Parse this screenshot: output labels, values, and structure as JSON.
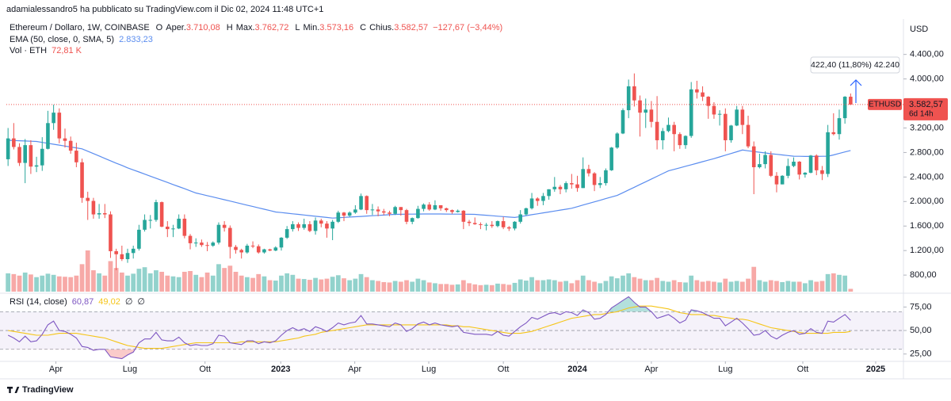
{
  "chart_data": {
    "type": "candlestick",
    "byline": "adamialessandro5 ha pubblicato su TradingView.com il Dic 02, 2024 11:48 UTC+1",
    "title": "Ethereum / Dollaro, 1W, COINBASE",
    "ohlc_legend": [
      {
        "key": "O",
        "name": "Aper.",
        "value": "3.710,08"
      },
      {
        "key": "H",
        "name": "Max.",
        "value": "3.762,72"
      },
      {
        "key": "L",
        "name": "Min.",
        "value": "3.573,16"
      },
      {
        "key": "C",
        "name": "Chius.",
        "value": "3.582,57"
      }
    ],
    "change_label": "−127,67 (−3,44%)",
    "currency": "USD",
    "symbol_tag": "ETHUSD",
    "last_price_label": "3.582,57",
    "countdown": "6d 14h",
    "measure_label": "422,40 (11,80%) 42.240",
    "brand": "TradingView",
    "up_color": "#26a69a",
    "down_color": "#ef5350",
    "xlim": [
      -0.3,
      157
    ],
    "xticks": [
      {
        "value": 8.4,
        "label": "Apr"
      },
      {
        "value": 21.4,
        "label": "Lug"
      },
      {
        "value": 34.6,
        "label": "Ott"
      },
      {
        "value": 47.9,
        "label": "2023"
      },
      {
        "value": 60.9,
        "label": "Apr"
      },
      {
        "value": 73.9,
        "label": "Lug"
      },
      {
        "value": 87,
        "label": "Ott"
      },
      {
        "value": 100,
        "label": "2024"
      },
      {
        "value": 113,
        "label": "Apr"
      },
      {
        "value": 126,
        "label": "Lug"
      },
      {
        "value": 139.6,
        "label": "Ott"
      },
      {
        "value": 152.4,
        "label": "2025"
      }
    ],
    "ylim": [
      530,
      4900
    ],
    "yticks": [
      {
        "value": 4400,
        "label": "4.400,00"
      },
      {
        "value": 4000,
        "label": "4.000,00"
      },
      {
        "value": 3200,
        "label": "3.200,00"
      },
      {
        "value": 2800,
        "label": "2.800,00"
      },
      {
        "value": 2400,
        "label": "2.400,00"
      },
      {
        "value": 2000,
        "label": "2.000,00"
      },
      {
        "value": 1600,
        "label": "1.600,00"
      },
      {
        "value": 1200,
        "label": "1.200,00"
      },
      {
        "value": 800,
        "label": "800,00"
      }
    ],
    "open": [
      2690,
      3030,
      2890,
      2630,
      2920,
      2570,
      2590,
      2860,
      3280,
      3450,
      3030,
      2990,
      2830,
      2640,
      2060,
      2010,
      1790,
      1810,
      1790,
      1190,
      1140,
      1060,
      1160,
      1230,
      1540,
      1700,
      1700,
      1990,
      1590,
      1550,
      1560,
      1720,
      1440,
      1320,
      1330,
      1290,
      1280,
      1330,
      1620,
      1570,
      1260,
      1210,
      1170,
      1280,
      1270,
      1170,
      1220,
      1200,
      1250,
      1410,
      1550,
      1630,
      1570,
      1630,
      1520,
      1690,
      1640,
      1560,
      1670,
      1820,
      1770,
      1820,
      1870,
      2090,
      1860,
      1870,
      1840,
      1820,
      1800,
      1910,
      1860,
      1670,
      1730,
      1880,
      1950,
      1870,
      1940,
      1890,
      1860,
      1830,
      1850,
      1670,
      1650,
      1630,
      1620,
      1620,
      1600,
      1680,
      1580,
      1560,
      1670,
      1790,
      1890,
      2050,
      2010,
      2090,
      2200,
      2240,
      2200,
      2300,
      2280,
      2220,
      2530,
      2460,
      2270,
      2300,
      2510,
      2880,
      3110,
      3490,
      3880,
      3650,
      3450,
      3500,
      3300,
      3000,
      3150,
      3250,
      3100,
      2920,
      3070,
      3830,
      3780,
      3710,
      3560,
      3420,
      3430,
      3000,
      3240,
      3500,
      3250,
      2900,
      2560,
      2610,
      2760,
      2420,
      2280,
      2420,
      2580,
      2650,
      2440,
      2470,
      2750,
      2510,
      2450,
      3130,
      3100,
      3360,
      3710.08
    ],
    "high": [
      3200,
      3280,
      2950,
      3020,
      3000,
      2730,
      3050,
      3480,
      3580,
      3520,
      3190,
      3060,
      2960,
      2700,
      2160,
      2060,
      1960,
      1960,
      1840,
      1230,
      1280,
      1230,
      1280,
      1620,
      1790,
      1780,
      2030,
      2000,
      1680,
      1620,
      1790,
      1790,
      1470,
      1400,
      1380,
      1340,
      1350,
      1660,
      1680,
      1610,
      1290,
      1230,
      1310,
      1350,
      1300,
      1230,
      1230,
      1270,
      1420,
      1600,
      1680,
      1660,
      1720,
      1680,
      1740,
      1720,
      1680,
      1700,
      1850,
      1830,
      1840,
      1940,
      2130,
      2100,
      1960,
      1920,
      1880,
      1850,
      1930,
      1910,
      1880,
      1740,
      1930,
      1970,
      1990,
      2020,
      1940,
      1900,
      1870,
      1870,
      1860,
      1700,
      1740,
      1660,
      1650,
      1680,
      1690,
      1750,
      1600,
      1680,
      1860,
      1900,
      2140,
      2070,
      2140,
      2200,
      2400,
      2270,
      2330,
      2450,
      2420,
      2720,
      2600,
      2480,
      2400,
      2540,
      2890,
      3130,
      3520,
      3990,
      4090,
      3730,
      3680,
      3640,
      3720,
      3200,
      3370,
      3300,
      3130,
      3080,
      3950,
      3970,
      3880,
      3720,
      3620,
      3490,
      3520,
      3250,
      3560,
      3560,
      3400,
      2980,
      2780,
      2820,
      2820,
      2480,
      2430,
      2700,
      2720,
      2660,
      2480,
      2760,
      2770,
      2580,
      3250,
      3440,
      3500,
      3720,
      3762.72
    ],
    "low": [
      2580,
      2850,
      2580,
      2300,
      2450,
      2480,
      2500,
      2850,
      3170,
      2950,
      2880,
      2780,
      2560,
      1980,
      1700,
      1720,
      1720,
      1730,
      1080,
      880,
      1030,
      1000,
      1070,
      1200,
      1510,
      1560,
      1670,
      1580,
      1420,
      1420,
      1550,
      1400,
      1220,
      1260,
      1260,
      1190,
      1260,
      1300,
      1510,
      1070,
      1150,
      1070,
      1150,
      1240,
      1150,
      1150,
      1190,
      1190,
      1200,
      1390,
      1510,
      1520,
      1540,
      1500,
      1460,
      1580,
      1410,
      1370,
      1650,
      1680,
      1750,
      1800,
      1860,
      1800,
      1780,
      1760,
      1780,
      1760,
      1780,
      1770,
      1630,
      1630,
      1720,
      1840,
      1850,
      1860,
      1850,
      1830,
      1800,
      1820,
      1550,
      1600,
      1620,
      1550,
      1530,
      1570,
      1580,
      1550,
      1520,
      1530,
      1640,
      1770,
      1870,
      1930,
      1940,
      2030,
      2160,
      2120,
      2150,
      2210,
      2160,
      2220,
      2410,
      2170,
      2220,
      2260,
      2500,
      2860,
      3100,
      3360,
      3550,
      3060,
      3200,
      3210,
      2850,
      2850,
      3130,
      2820,
      2860,
      2860,
      3040,
      3680,
      3640,
      3350,
      3350,
      3240,
      2820,
      2960,
      3230,
      3100,
      2870,
      2120,
      2540,
      2540,
      2400,
      2150,
      2280,
      2380,
      2560,
      2360,
      2390,
      2460,
      2430,
      2350,
      2400,
      3080,
      3010,
      3270,
      3573.16
    ],
    "close": [
      3030,
      2890,
      2630,
      2920,
      2570,
      2590,
      2860,
      3280,
      3450,
      3030,
      2990,
      2830,
      2640,
      2060,
      2010,
      1790,
      1810,
      1790,
      1190,
      1140,
      1060,
      1160,
      1230,
      1540,
      1700,
      1700,
      1990,
      1590,
      1550,
      1560,
      1720,
      1440,
      1320,
      1330,
      1290,
      1280,
      1330,
      1620,
      1570,
      1260,
      1210,
      1170,
      1280,
      1270,
      1170,
      1220,
      1200,
      1250,
      1410,
      1550,
      1630,
      1570,
      1630,
      1520,
      1690,
      1640,
      1560,
      1670,
      1820,
      1770,
      1820,
      1870,
      2090,
      1860,
      1870,
      1840,
      1820,
      1800,
      1910,
      1860,
      1670,
      1730,
      1880,
      1950,
      1870,
      1940,
      1890,
      1860,
      1830,
      1850,
      1670,
      1650,
      1630,
      1620,
      1620,
      1600,
      1680,
      1580,
      1560,
      1670,
      1790,
      1890,
      2050,
      2010,
      2090,
      2200,
      2240,
      2200,
      2300,
      2280,
      2220,
      2530,
      2460,
      2270,
      2300,
      2510,
      2880,
      3110,
      3490,
      3880,
      3650,
      3450,
      3500,
      3300,
      3000,
      3150,
      3250,
      3100,
      2920,
      3070,
      3830,
      3780,
      3710,
      3560,
      3420,
      3430,
      3000,
      3240,
      3500,
      3250,
      2900,
      2560,
      2610,
      2760,
      2420,
      2280,
      2420,
      2580,
      2650,
      2440,
      2470,
      2750,
      2510,
      2450,
      3130,
      3100,
      3360,
      3710,
      3582.57
    ],
    "volume_name": "Vol · ETH",
    "volume_value_label": "72,81 K",
    "volume": [
      480,
      460,
      420,
      500,
      450,
      380,
      420,
      470,
      440,
      400,
      390,
      380,
      420,
      720,
      1080,
      560,
      480,
      420,
      800,
      620,
      500,
      420,
      470,
      600,
      640,
      480,
      560,
      520,
      420,
      400,
      380,
      520,
      540,
      440,
      380,
      500,
      420,
      720,
      620,
      680,
      520,
      420,
      380,
      360,
      460,
      400,
      300,
      290,
      420,
      480,
      440,
      340,
      330,
      310,
      360,
      320,
      340,
      390,
      430,
      350,
      300,
      340,
      460,
      380,
      300,
      280,
      250,
      240,
      280,
      260,
      300,
      260,
      340,
      300,
      240,
      220,
      200,
      200,
      180,
      190,
      300,
      220,
      190,
      170,
      180,
      170,
      210,
      200,
      180,
      230,
      320,
      290,
      380,
      300,
      300,
      320,
      300,
      260,
      280,
      220,
      300,
      420,
      300,
      260,
      220,
      280,
      400,
      350,
      420,
      480,
      380,
      340,
      300,
      300,
      360,
      280,
      260,
      300,
      250,
      240,
      420,
      300,
      260,
      280,
      260,
      240,
      340,
      260,
      280,
      260,
      340,
      650,
      300,
      260,
      300,
      280,
      250,
      280,
      260,
      260,
      220,
      300,
      260,
      280,
      460,
      480,
      440,
      420,
      72.81
    ],
    "ema": {
      "name": "EMA (50, close, 0, SMA, 5)",
      "value_label": "2.833,23",
      "color": "#5b8def",
      "values": [
        3000,
        2996,
        2992,
        2988,
        2984,
        2980,
        2965,
        2950,
        2935,
        2920,
        2905,
        2890,
        2875,
        2860,
        2821,
        2782,
        2743,
        2704,
        2665,
        2626,
        2589,
        2550,
        2516,
        2482,
        2448,
        2414,
        2380,
        2345,
        2311,
        2277,
        2243,
        2209,
        2175,
        2140,
        2118,
        2096,
        2074,
        2052,
        2030,
        2008,
        1986,
        1963,
        1941,
        1919,
        1897,
        1875,
        1852,
        1830,
        1820,
        1810,
        1800,
        1790,
        1780,
        1770,
        1760,
        1750,
        1740,
        1730,
        1735,
        1741,
        1746,
        1752,
        1757,
        1763,
        1768,
        1774,
        1779,
        1785,
        1790,
        1792,
        1794,
        1795,
        1796,
        1797,
        1797,
        1797,
        1797,
        1796,
        1795,
        1794,
        1793,
        1792,
        1790,
        1783,
        1776,
        1769,
        1761,
        1754,
        1747,
        1740,
        1755,
        1770,
        1785,
        1800,
        1815,
        1830,
        1845,
        1860,
        1875,
        1890,
        1916,
        1943,
        1969,
        1995,
        2021,
        2048,
        2074,
        2100,
        2144,
        2189,
        2233,
        2278,
        2322,
        2367,
        2411,
        2456,
        2500,
        2525,
        2550,
        2575,
        2600,
        2625,
        2650,
        2675,
        2700,
        2728,
        2756,
        2784,
        2812,
        2840,
        2828,
        2816,
        2804,
        2792,
        2780,
        2770,
        2760,
        2750,
        2740,
        2738,
        2736,
        2736,
        2736,
        2738,
        2740,
        2760,
        2785,
        2810,
        2833.23
      ]
    },
    "rsi": {
      "name": "RSI (14, close)",
      "value_label": "60,87",
      "color": "#7e57c2",
      "ylim": [
        18,
        88
      ],
      "yticks": [
        {
          "value": 75,
          "label": "75,00"
        },
        {
          "value": 50,
          "label": "50,00"
        },
        {
          "value": 25,
          "label": "25,00"
        }
      ],
      "bands": [
        70,
        50,
        30
      ],
      "extra_labels": [
        "∅",
        "∅"
      ],
      "values": [
        45,
        42,
        38,
        44,
        38,
        39,
        46,
        56,
        60,
        50,
        49,
        46,
        42,
        33,
        32,
        29,
        30,
        30,
        22,
        21,
        20,
        24,
        27,
        37,
        41,
        41,
        48,
        40,
        39,
        39,
        43,
        37,
        34,
        35,
        34,
        34,
        36,
        45,
        44,
        37,
        36,
        35,
        39,
        39,
        36,
        38,
        37,
        39,
        45,
        50,
        53,
        50,
        52,
        49,
        54,
        52,
        49,
        53,
        58,
        56,
        58,
        59,
        66,
        57,
        57,
        56,
        55,
        54,
        58,
        56,
        49,
        52,
        57,
        59,
        56,
        58,
        56,
        55,
        54,
        55,
        48,
        47,
        46,
        46,
        46,
        45,
        49,
        45,
        44,
        49,
        54,
        58,
        64,
        62,
        65,
        68,
        69,
        67,
        70,
        69,
        66,
        72,
        69,
        62,
        63,
        67,
        74,
        78,
        82,
        86,
        80,
        75,
        75,
        70,
        63,
        65,
        67,
        63,
        58,
        61,
        72,
        71,
        69,
        66,
        63,
        63,
        55,
        59,
        63,
        58,
        52,
        45,
        46,
        50,
        44,
        41,
        45,
        48,
        50,
        46,
        47,
        52,
        48,
        47,
        60,
        59,
        63,
        67,
        60.87
      ],
      "ma": {
        "value_label": "49,02",
        "color": "#f5c518",
        "values": [
          50,
          49,
          48,
          47,
          46,
          45,
          45,
          45,
          46,
          47,
          47,
          47,
          47,
          46,
          45,
          44,
          43,
          42,
          40,
          38,
          36,
          34,
          33,
          32,
          31,
          31,
          31,
          31,
          32,
          33,
          34,
          35,
          36,
          37,
          37,
          37,
          37,
          37,
          37,
          37,
          37,
          38,
          38,
          38,
          38,
          38,
          38,
          38,
          39,
          40,
          41,
          42,
          44,
          45,
          46,
          48,
          49,
          50,
          51,
          52,
          53,
          54,
          55,
          56,
          56,
          56,
          56,
          56,
          56,
          56,
          56,
          56,
          56,
          56,
          56,
          56,
          56,
          56,
          55,
          55,
          54,
          54,
          53,
          52,
          51,
          50,
          49,
          48,
          47,
          47,
          47,
          48,
          49,
          51,
          53,
          55,
          57,
          59,
          61,
          63,
          64,
          65,
          66,
          67,
          67,
          68,
          69,
          70,
          72,
          74,
          75,
          76,
          76,
          76,
          75,
          74,
          73,
          71,
          69,
          68,
          67,
          67,
          67,
          66,
          66,
          65,
          64,
          63,
          62,
          62,
          61,
          59,
          57,
          55,
          53,
          52,
          51,
          50,
          49,
          48,
          47,
          47,
          47,
          47,
          47,
          48,
          48,
          48,
          49.02
        ]
      }
    }
  }
}
